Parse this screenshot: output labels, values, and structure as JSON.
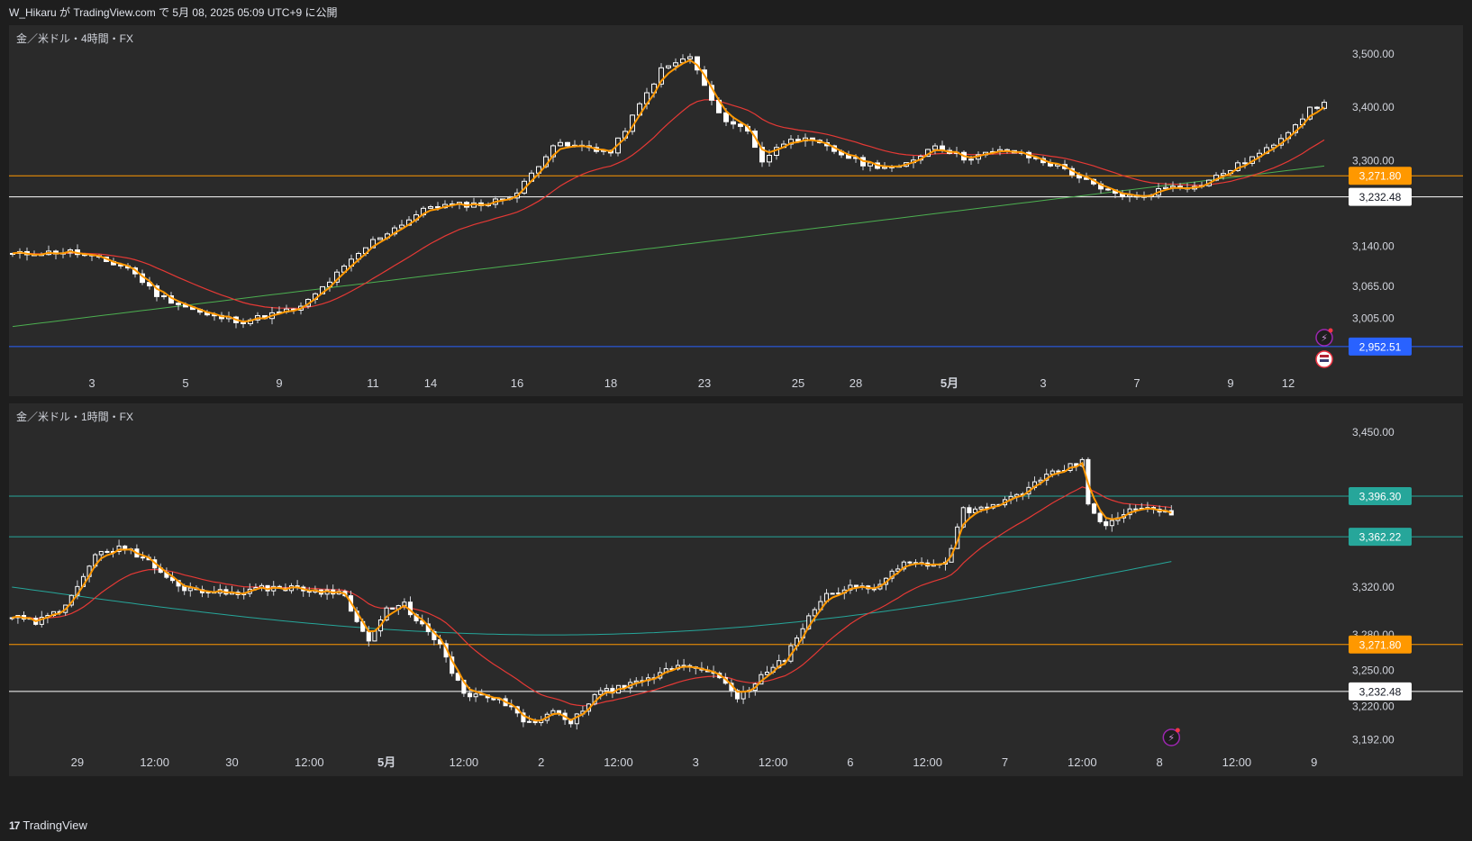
{
  "header": {
    "text": "W_Hikaru が TradingView.com で 5月 08, 2025 05:09 UTC+9 に公開"
  },
  "footer": {
    "brand": "TradingView"
  },
  "colors": {
    "background": "#2a2a2a",
    "bull": "#ffffff",
    "bear": "#ffffff",
    "ema_fast": "#ff9800",
    "ema_mid": "#e53935",
    "ema_slow_top": "#4caf50",
    "ema_slow_bottom": "#26a69a",
    "level_orange": "#ff9800",
    "level_white": "#ffffff",
    "level_blue": "#2962ff",
    "level_teal": "#26a69a"
  },
  "icons": [
    "lightning-event-icon",
    "us-flag-icon"
  ],
  "chart_data": [
    {
      "type": "candlestick",
      "title": "金／米ドル・4時間・FX",
      "ylim": [
        2900,
        3540
      ],
      "y_ticks": [
        "3,500.00",
        "3,400.00",
        "3,300.00",
        "3,140.00",
        "3,065.00",
        "3,005.00"
      ],
      "y_tick_values": [
        3500,
        3400,
        3300,
        3140,
        3065,
        3005
      ],
      "x_ticks": [
        "3",
        "5",
        "9",
        "11",
        "14",
        "16",
        "18",
        "23",
        "25",
        "28",
        "5月",
        "3",
        "7",
        "9",
        "12"
      ],
      "x_tick_index": [
        11,
        24,
        37,
        50,
        58,
        70,
        83,
        96,
        109,
        117,
        130,
        143,
        156,
        169,
        177
      ],
      "n_bars": 183,
      "last_close": 3385,
      "price_levels": [
        {
          "value": 3271.8,
          "label": "3,271.80",
          "style": "orange"
        },
        {
          "value": 3232.48,
          "label": "3,232.48",
          "style": "white"
        },
        {
          "value": 2952.51,
          "label": "2,952.51",
          "style": "blue"
        }
      ],
      "waypoints": [
        [
          0,
          3125
        ],
        [
          8,
          3130
        ],
        [
          16,
          3100
        ],
        [
          20,
          3050
        ],
        [
          27,
          3010
        ],
        [
          32,
          3000
        ],
        [
          40,
          3025
        ],
        [
          50,
          3150
        ],
        [
          58,
          3215
        ],
        [
          66,
          3220
        ],
        [
          70,
          3240
        ],
        [
          75,
          3330
        ],
        [
          80,
          3325
        ],
        [
          83,
          3315
        ],
        [
          90,
          3470
        ],
        [
          94,
          3495
        ],
        [
          98,
          3385
        ],
        [
          102,
          3355
        ],
        [
          104,
          3300
        ],
        [
          108,
          3345
        ],
        [
          112,
          3330
        ],
        [
          118,
          3295
        ],
        [
          123,
          3285
        ],
        [
          128,
          3330
        ],
        [
          132,
          3305
        ],
        [
          138,
          3320
        ],
        [
          146,
          3285
        ],
        [
          151,
          3245
        ],
        [
          156,
          3230
        ],
        [
          161,
          3255
        ],
        [
          164,
          3250
        ],
        [
          167,
          3270
        ],
        [
          174,
          3320
        ],
        [
          180,
          3395
        ],
        [
          186,
          3430
        ],
        [
          188,
          3375
        ],
        [
          190,
          3375
        ],
        [
          194,
          3395
        ],
        [
          196,
          3385
        ]
      ]
    },
    {
      "type": "candlestick",
      "title": "金／米ドル・1時間・FX",
      "ylim": [
        3178,
        3468
      ],
      "y_ticks": [
        "3,450.00",
        "3,320.00",
        "3,280.00",
        "3,250.00",
        "3,220.00",
        "3,192.00"
      ],
      "y_tick_values": [
        3450,
        3320,
        3280,
        3250,
        3220,
        3192
      ],
      "x_ticks": [
        "29",
        "12:00",
        "30",
        "12:00",
        "5月",
        "12:00",
        "2",
        "12:00",
        "3",
        "12:00",
        "6",
        "12:00",
        "7",
        "12:00",
        "8",
        "12:00",
        "9"
      ],
      "x_tick_index": [
        11,
        24,
        37,
        50,
        63,
        76,
        89,
        102,
        115,
        128,
        141,
        154,
        167,
        180,
        193,
        206,
        219
      ],
      "n_bars": 196,
      "last_close": 3375,
      "price_levels": [
        {
          "value": 3396.3,
          "label": "3,396.30",
          "style": "teal"
        },
        {
          "value": 3362.22,
          "label": "3,362.22",
          "style": "teal"
        },
        {
          "value": 3271.8,
          "label": "3,271.80",
          "style": "orange"
        },
        {
          "value": 3232.48,
          "label": "3,232.48",
          "style": "white"
        }
      ],
      "waypoints": [
        [
          0,
          3295
        ],
        [
          4,
          3290
        ],
        [
          8,
          3300
        ],
        [
          14,
          3345
        ],
        [
          18,
          3355
        ],
        [
          22,
          3345
        ],
        [
          28,
          3320
        ],
        [
          36,
          3315
        ],
        [
          44,
          3320
        ],
        [
          56,
          3315
        ],
        [
          58,
          3290
        ],
        [
          60,
          3275
        ],
        [
          63,
          3300
        ],
        [
          66,
          3305
        ],
        [
          72,
          3270
        ],
        [
          76,
          3230
        ],
        [
          82,
          3225
        ],
        [
          87,
          3205
        ],
        [
          91,
          3215
        ],
        [
          94,
          3205
        ],
        [
          98,
          3230
        ],
        [
          106,
          3240
        ],
        [
          112,
          3255
        ],
        [
          118,
          3250
        ],
        [
          122,
          3225
        ],
        [
          126,
          3245
        ],
        [
          130,
          3260
        ],
        [
          136,
          3310
        ],
        [
          141,
          3320
        ],
        [
          145,
          3320
        ],
        [
          150,
          3340
        ],
        [
          157,
          3340
        ],
        [
          160,
          3385
        ],
        [
          164,
          3385
        ],
        [
          170,
          3400
        ],
        [
          175,
          3415
        ],
        [
          180,
          3425
        ],
        [
          181,
          3390
        ],
        [
          184,
          3370
        ],
        [
          188,
          3385
        ],
        [
          193,
          3385
        ],
        [
          196,
          3375
        ]
      ]
    }
  ]
}
